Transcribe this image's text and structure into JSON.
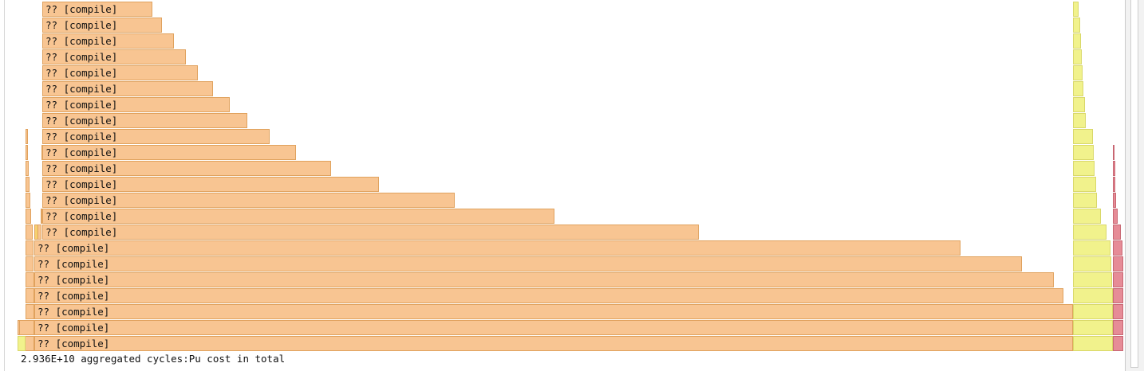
{
  "frame_label": "?? [compile]",
  "status": {
    "text": "2.936E+10 aggregated cycles:Pu cost in total"
  },
  "colors": {
    "frame_fill": "#f8c592",
    "frame_border": "#e0a25e",
    "yellow_fill": "#f1f28c",
    "red_fill": "#e68c97"
  },
  "rows_count": 22
}
